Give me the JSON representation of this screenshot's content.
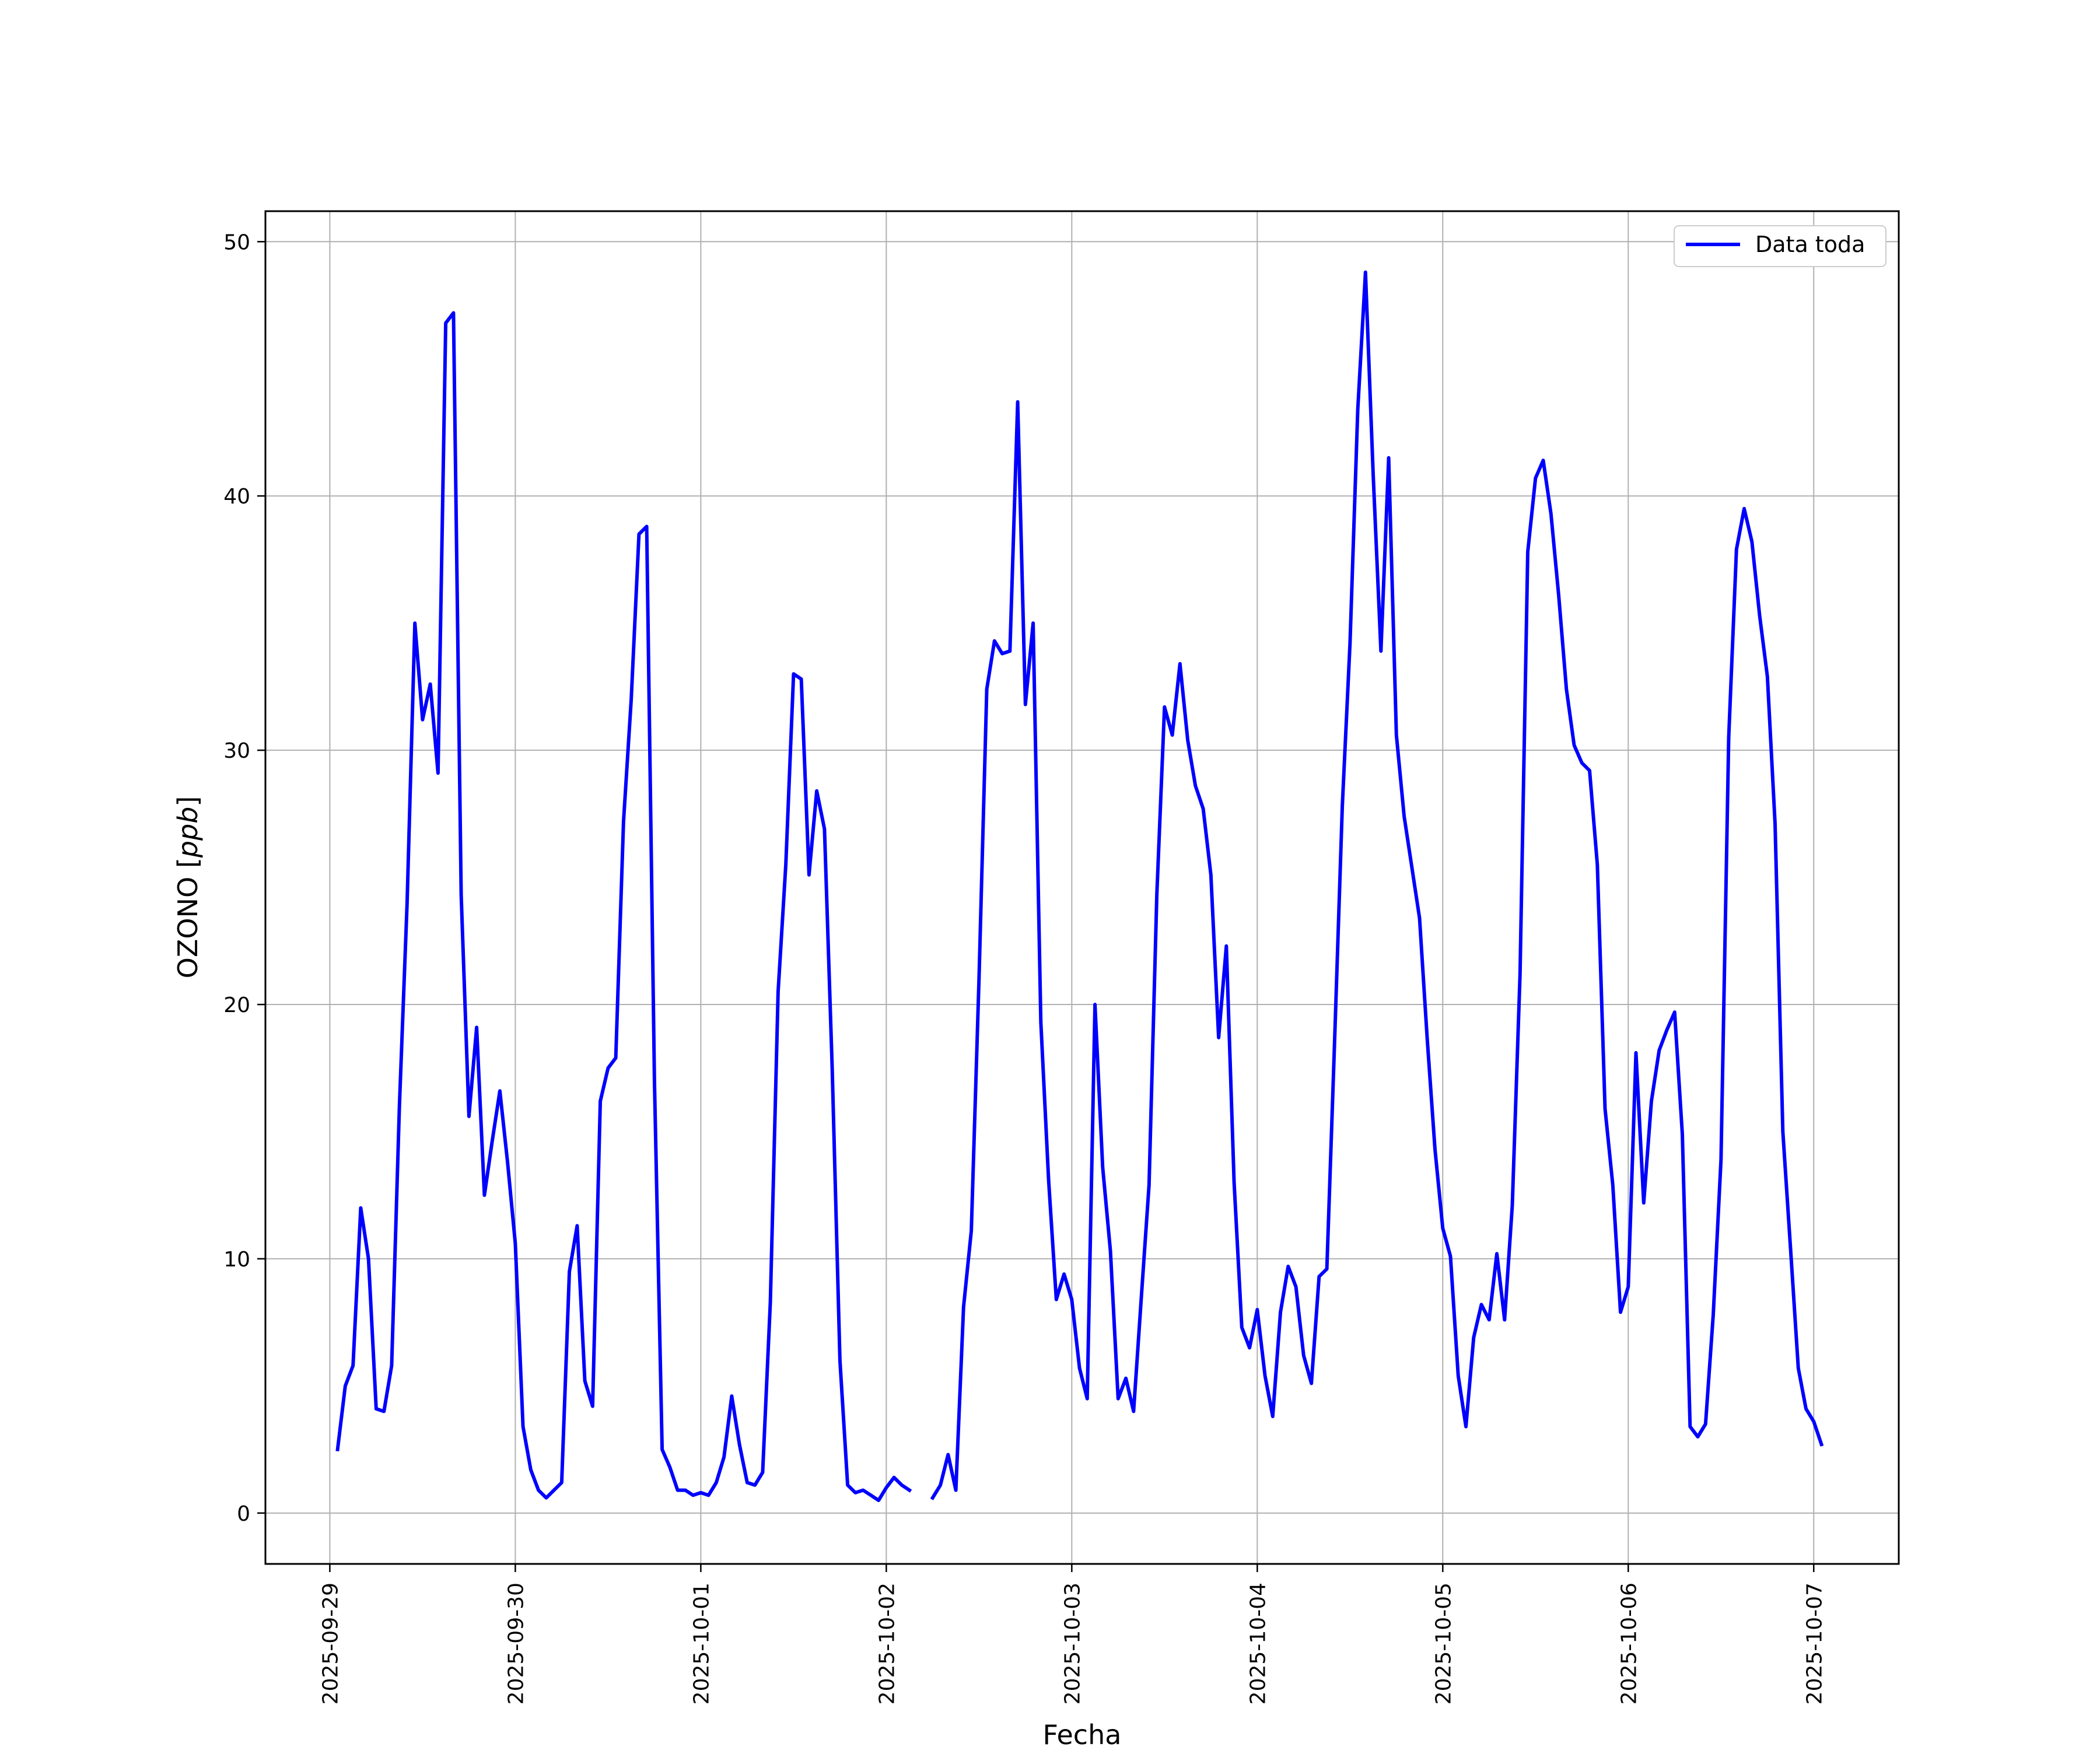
{
  "chart_data": {
    "type": "line",
    "xlabel": "Fecha",
    "ylabel": "OZONO",
    "ylabel_unit": "ppb",
    "x_ticks": [
      "2025-09-29",
      "2025-09-30",
      "2025-10-01",
      "2025-10-02",
      "2025-10-03",
      "2025-10-04",
      "2025-10-05",
      "2025-10-06",
      "2025-10-07"
    ],
    "y_ticks": [
      0,
      10,
      20,
      30,
      40,
      50
    ],
    "xlim": [
      "2025-09-28 15:40",
      "2025-10-07 11:00"
    ],
    "ylim": [
      -2,
      51.2
    ],
    "grid": true,
    "legend_position": "top-right",
    "series": [
      {
        "name": "Data toda",
        "color": "#0000ff",
        "points": [
          [
            "2025-09-29 01:00",
            2.5
          ],
          [
            "2025-09-29 02:00",
            5.0
          ],
          [
            "2025-09-29 03:00",
            5.8
          ],
          [
            "2025-09-29 04:00",
            12.0
          ],
          [
            "2025-09-29 05:00",
            10.0
          ],
          [
            "2025-09-29 06:00",
            4.1
          ],
          [
            "2025-09-29 07:00",
            4.0
          ],
          [
            "2025-09-29 08:00",
            5.8
          ],
          [
            "2025-09-29 09:00",
            16.0
          ],
          [
            "2025-09-29 10:00",
            24.0
          ],
          [
            "2025-09-29 11:00",
            35.0
          ],
          [
            "2025-09-29 12:00",
            31.2
          ],
          [
            "2025-09-29 13:00",
            32.6
          ],
          [
            "2025-09-29 14:00",
            29.1
          ],
          [
            "2025-09-29 15:00",
            46.8
          ],
          [
            "2025-09-29 16:00",
            47.2
          ],
          [
            "2025-09-29 17:00",
            24.3
          ],
          [
            "2025-09-29 18:00",
            15.6
          ],
          [
            "2025-09-29 19:00",
            19.1
          ],
          [
            "2025-09-29 20:00",
            12.5
          ],
          [
            "2025-09-29 21:00",
            14.6
          ],
          [
            "2025-09-29 22:00",
            16.6
          ],
          [
            "2025-09-29 23:00",
            13.8
          ],
          [
            "2025-09-30 00:00",
            10.6
          ],
          [
            "2025-09-30 01:00",
            3.4
          ],
          [
            "2025-09-30 02:00",
            1.7
          ],
          [
            "2025-09-30 03:00",
            0.9
          ],
          [
            "2025-09-30 04:00",
            0.6
          ],
          [
            "2025-09-30 05:00",
            0.9
          ],
          [
            "2025-09-30 06:00",
            1.2
          ],
          [
            "2025-09-30 07:00",
            9.5
          ],
          [
            "2025-09-30 08:00",
            11.3
          ],
          [
            "2025-09-30 09:00",
            5.2
          ],
          [
            "2025-09-30 10:00",
            4.2
          ],
          [
            "2025-09-30 11:00",
            16.2
          ],
          [
            "2025-09-30 12:00",
            17.5
          ],
          [
            "2025-09-30 13:00",
            17.9
          ],
          [
            "2025-09-30 14:00",
            27.2
          ],
          [
            "2025-09-30 15:00",
            32.0
          ],
          [
            "2025-09-30 16:00",
            38.5
          ],
          [
            "2025-09-30 17:00",
            38.8
          ],
          [
            "2025-09-30 18:00",
            17.0
          ],
          [
            "2025-09-30 19:00",
            2.5
          ],
          [
            "2025-09-30 20:00",
            1.8
          ],
          [
            "2025-09-30 21:00",
            0.9
          ],
          [
            "2025-09-30 22:00",
            0.9
          ],
          [
            "2025-09-30 23:00",
            0.7
          ],
          [
            "2025-10-01 00:00",
            0.8
          ],
          [
            "2025-10-01 01:00",
            0.7
          ],
          [
            "2025-10-01 02:00",
            1.2
          ],
          [
            "2025-10-01 03:00",
            2.2
          ],
          [
            "2025-10-01 04:00",
            4.6
          ],
          [
            "2025-10-01 05:00",
            2.7
          ],
          [
            "2025-10-01 06:00",
            1.2
          ],
          [
            "2025-10-01 07:00",
            1.1
          ],
          [
            "2025-10-01 08:00",
            1.6
          ],
          [
            "2025-10-01 09:00",
            8.3
          ],
          [
            "2025-10-01 10:00",
            20.5
          ],
          [
            "2025-10-01 11:00",
            25.5
          ],
          [
            "2025-10-01 12:00",
            33.0
          ],
          [
            "2025-10-01 13:00",
            32.8
          ],
          [
            "2025-10-01 14:00",
            25.1
          ],
          [
            "2025-10-01 15:00",
            28.4
          ],
          [
            "2025-10-01 16:00",
            26.9
          ],
          [
            "2025-10-01 17:00",
            17.5
          ],
          [
            "2025-10-01 18:00",
            6.0
          ],
          [
            "2025-10-01 19:00",
            1.1
          ],
          [
            "2025-10-01 20:00",
            0.8
          ],
          [
            "2025-10-01 21:00",
            0.9
          ],
          [
            "2025-10-01 22:00",
            0.7
          ],
          [
            "2025-10-01 23:00",
            0.5
          ],
          [
            "2025-10-02 00:00",
            1.0
          ],
          [
            "2025-10-02 01:00",
            1.4
          ],
          [
            "2025-10-02 02:00",
            1.1
          ],
          [
            "2025-10-02 03:00",
            0.9
          ],
          null,
          [
            "2025-10-02 06:00",
            0.6
          ],
          [
            "2025-10-02 07:00",
            1.1
          ],
          [
            "2025-10-02 08:00",
            2.3
          ],
          [
            "2025-10-02 09:00",
            0.9
          ],
          [
            "2025-10-02 10:00",
            8.1
          ],
          [
            "2025-10-02 11:00",
            11.1
          ],
          [
            "2025-10-02 12:00",
            21.0
          ],
          [
            "2025-10-02 13:00",
            32.4
          ],
          [
            "2025-10-02 14:00",
            34.3
          ],
          [
            "2025-10-02 15:00",
            33.8
          ],
          [
            "2025-10-02 16:00",
            33.9
          ],
          [
            "2025-10-02 17:00",
            43.7
          ],
          [
            "2025-10-02 18:00",
            31.8
          ],
          [
            "2025-10-02 19:00",
            35.0
          ],
          [
            "2025-10-02 20:00",
            19.3
          ],
          [
            "2025-10-02 21:00",
            13.1
          ],
          [
            "2025-10-02 22:00",
            8.4
          ],
          [
            "2025-10-02 23:00",
            9.4
          ],
          [
            "2025-10-03 00:00",
            8.4
          ],
          [
            "2025-10-03 01:00",
            5.7
          ],
          [
            "2025-10-03 02:00",
            4.5
          ],
          [
            "2025-10-03 03:00",
            20.0
          ],
          [
            "2025-10-03 04:00",
            13.6
          ],
          [
            "2025-10-03 05:00",
            10.3
          ],
          [
            "2025-10-03 06:00",
            4.5
          ],
          [
            "2025-10-03 07:00",
            5.3
          ],
          [
            "2025-10-03 08:00",
            4.0
          ],
          [
            "2025-10-03 09:00",
            8.5
          ],
          [
            "2025-10-03 10:00",
            12.9
          ],
          [
            "2025-10-03 11:00",
            24.3
          ],
          [
            "2025-10-03 12:00",
            31.7
          ],
          [
            "2025-10-03 13:00",
            30.6
          ],
          [
            "2025-10-03 14:00",
            33.4
          ],
          [
            "2025-10-03 15:00",
            30.4
          ],
          [
            "2025-10-03 16:00",
            28.6
          ],
          [
            "2025-10-03 17:00",
            27.7
          ],
          [
            "2025-10-03 18:00",
            25.1
          ],
          [
            "2025-10-03 19:00",
            18.7
          ],
          [
            "2025-10-03 20:00",
            22.3
          ],
          [
            "2025-10-03 21:00",
            13.0
          ],
          [
            "2025-10-03 22:00",
            7.3
          ],
          [
            "2025-10-03 23:00",
            6.5
          ],
          [
            "2025-10-04 00:00",
            8.0
          ],
          [
            "2025-10-04 01:00",
            5.4
          ],
          [
            "2025-10-04 02:00",
            3.8
          ],
          [
            "2025-10-04 03:00",
            7.9
          ],
          [
            "2025-10-04 04:00",
            9.7
          ],
          [
            "2025-10-04 05:00",
            8.9
          ],
          [
            "2025-10-04 06:00",
            6.2
          ],
          [
            "2025-10-04 07:00",
            5.1
          ],
          [
            "2025-10-04 08:00",
            9.3
          ],
          [
            "2025-10-04 09:00",
            9.6
          ],
          [
            "2025-10-04 10:00",
            18.5
          ],
          [
            "2025-10-04 11:00",
            27.8
          ],
          [
            "2025-10-04 12:00",
            34.2
          ],
          [
            "2025-10-04 13:00",
            43.4
          ],
          [
            "2025-10-04 14:00",
            48.8
          ],
          [
            "2025-10-04 15:00",
            40.8
          ],
          [
            "2025-10-04 16:00",
            33.9
          ],
          [
            "2025-10-04 17:00",
            41.5
          ],
          [
            "2025-10-04 18:00",
            30.6
          ],
          [
            "2025-10-04 19:00",
            27.4
          ],
          [
            "2025-10-04 20:00",
            25.4
          ],
          [
            "2025-10-04 21:00",
            23.4
          ],
          [
            "2025-10-04 22:00",
            18.6
          ],
          [
            "2025-10-04 23:00",
            14.3
          ],
          [
            "2025-10-05 00:00",
            11.2
          ],
          [
            "2025-10-05 01:00",
            10.1
          ],
          [
            "2025-10-05 02:00",
            5.4
          ],
          [
            "2025-10-05 03:00",
            3.4
          ],
          [
            "2025-10-05 04:00",
            6.9
          ],
          [
            "2025-10-05 05:00",
            8.2
          ],
          [
            "2025-10-05 06:00",
            7.6
          ],
          [
            "2025-10-05 07:00",
            10.2
          ],
          [
            "2025-10-05 08:00",
            7.6
          ],
          [
            "2025-10-05 09:00",
            12.1
          ],
          [
            "2025-10-05 10:00",
            21.2
          ],
          [
            "2025-10-05 11:00",
            37.8
          ],
          [
            "2025-10-05 12:00",
            40.7
          ],
          [
            "2025-10-05 13:00",
            41.4
          ],
          [
            "2025-10-05 14:00",
            39.3
          ],
          [
            "2025-10-05 15:00",
            36.1
          ],
          [
            "2025-10-05 16:00",
            32.4
          ],
          [
            "2025-10-05 17:00",
            30.2
          ],
          [
            "2025-10-05 18:00",
            29.5
          ],
          [
            "2025-10-05 19:00",
            29.2
          ],
          [
            "2025-10-05 20:00",
            25.5
          ],
          [
            "2025-10-05 21:00",
            15.9
          ],
          [
            "2025-10-05 22:00",
            12.9
          ],
          [
            "2025-10-05 23:00",
            7.9
          ],
          [
            "2025-10-06 00:00",
            8.9
          ],
          [
            "2025-10-06 01:00",
            18.1
          ],
          [
            "2025-10-06 02:00",
            12.2
          ],
          [
            "2025-10-06 03:00",
            16.2
          ],
          [
            "2025-10-06 04:00",
            18.2
          ],
          [
            "2025-10-06 05:00",
            19.0
          ],
          [
            "2025-10-06 06:00",
            19.7
          ],
          [
            "2025-10-06 07:00",
            14.9
          ],
          [
            "2025-10-06 08:00",
            3.4
          ],
          [
            "2025-10-06 09:00",
            3.0
          ],
          [
            "2025-10-06 10:00",
            3.5
          ],
          [
            "2025-10-06 11:00",
            7.8
          ],
          [
            "2025-10-06 12:00",
            13.9
          ],
          [
            "2025-10-06 13:00",
            30.5
          ],
          [
            "2025-10-06 14:00",
            37.9
          ],
          [
            "2025-10-06 15:00",
            39.5
          ],
          [
            "2025-10-06 16:00",
            38.2
          ],
          [
            "2025-10-06 17:00",
            35.3
          ],
          [
            "2025-10-06 18:00",
            32.9
          ],
          [
            "2025-10-06 19:00",
            27.1
          ],
          [
            "2025-10-06 20:00",
            15.0
          ],
          [
            "2025-10-06 21:00",
            10.4
          ],
          [
            "2025-10-06 22:00",
            5.7
          ],
          [
            "2025-10-06 23:00",
            4.1
          ],
          [
            "2025-10-07 00:00",
            3.6
          ],
          [
            "2025-10-07 01:00",
            2.7
          ]
        ]
      }
    ]
  }
}
